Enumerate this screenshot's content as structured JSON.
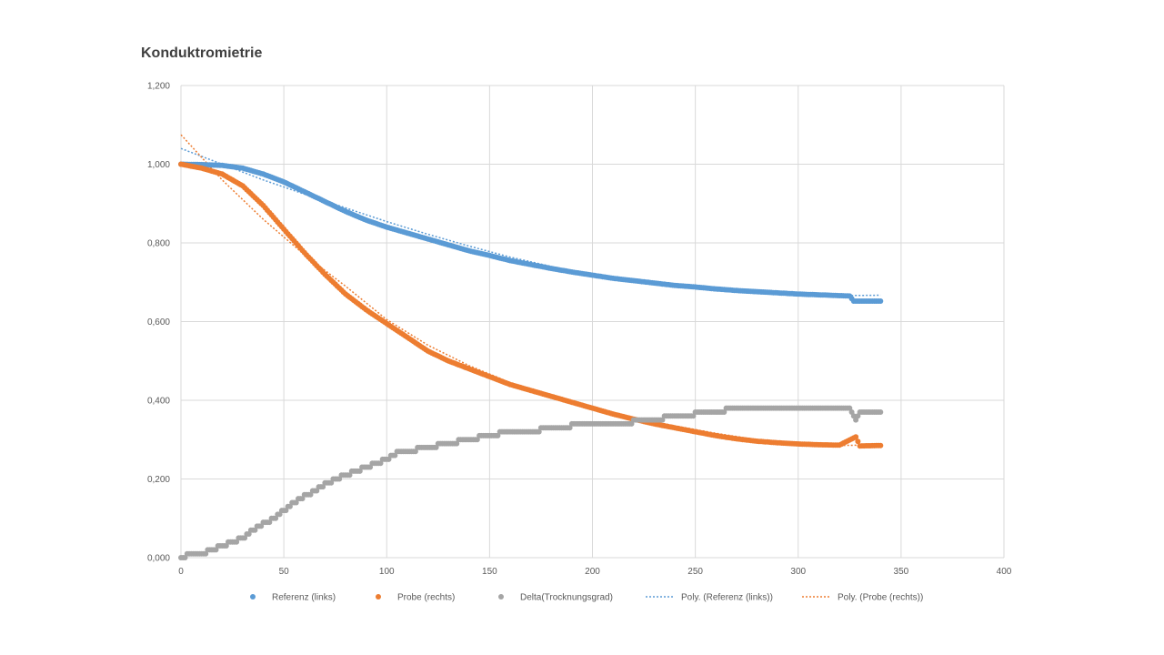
{
  "chart_data": {
    "type": "scatter",
    "title": "Konduktromietrie",
    "xlabel": "",
    "ylabel": "",
    "xlim": [
      0,
      400
    ],
    "ylim": [
      0,
      1.2
    ],
    "x_ticks": [
      0,
      50,
      100,
      150,
      200,
      250,
      300,
      350,
      400
    ],
    "y_ticks": [
      0,
      0.2,
      0.4,
      0.6,
      0.8,
      1.0,
      1.2
    ],
    "x_tick_labels": [
      "0",
      "50",
      "100",
      "150",
      "200",
      "250",
      "300",
      "350",
      "400"
    ],
    "y_tick_labels": [
      "0,000",
      "0,200",
      "0,400",
      "0,600",
      "0,800",
      "1,000",
      "1,200"
    ],
    "grid": true,
    "legend_position": "bottom",
    "series": [
      {
        "name": "Referenz (links)",
        "kind": "scatter",
        "color": "#5B9BD5",
        "points": [
          [
            0,
            1.0
          ],
          [
            10,
            0.999
          ],
          [
            20,
            0.997
          ],
          [
            30,
            0.99
          ],
          [
            40,
            0.975
          ],
          [
            50,
            0.955
          ],
          [
            60,
            0.93
          ],
          [
            70,
            0.905
          ],
          [
            80,
            0.88
          ],
          [
            90,
            0.858
          ],
          [
            100,
            0.84
          ],
          [
            110,
            0.825
          ],
          [
            120,
            0.81
          ],
          [
            130,
            0.795
          ],
          [
            140,
            0.78
          ],
          [
            150,
            0.768
          ],
          [
            160,
            0.755
          ],
          [
            170,
            0.745
          ],
          [
            180,
            0.735
          ],
          [
            190,
            0.726
          ],
          [
            200,
            0.718
          ],
          [
            210,
            0.71
          ],
          [
            220,
            0.704
          ],
          [
            230,
            0.698
          ],
          [
            240,
            0.692
          ],
          [
            250,
            0.688
          ],
          [
            260,
            0.683
          ],
          [
            270,
            0.679
          ],
          [
            280,
            0.676
          ],
          [
            290,
            0.673
          ],
          [
            300,
            0.67
          ],
          [
            310,
            0.668
          ],
          [
            320,
            0.666
          ],
          [
            325,
            0.665
          ],
          [
            327,
            0.652
          ],
          [
            330,
            0.652
          ],
          [
            335,
            0.652
          ],
          [
            340,
            0.652
          ]
        ]
      },
      {
        "name": "Probe (rechts)",
        "kind": "scatter",
        "color": "#ED7D31",
        "points": [
          [
            0,
            1.0
          ],
          [
            10,
            0.99
          ],
          [
            20,
            0.975
          ],
          [
            30,
            0.945
          ],
          [
            40,
            0.895
          ],
          [
            50,
            0.835
          ],
          [
            60,
            0.775
          ],
          [
            70,
            0.72
          ],
          [
            80,
            0.67
          ],
          [
            90,
            0.63
          ],
          [
            100,
            0.595
          ],
          [
            110,
            0.56
          ],
          [
            120,
            0.525
          ],
          [
            130,
            0.5
          ],
          [
            140,
            0.48
          ],
          [
            150,
            0.46
          ],
          [
            160,
            0.44
          ],
          [
            170,
            0.425
          ],
          [
            180,
            0.41
          ],
          [
            190,
            0.395
          ],
          [
            200,
            0.38
          ],
          [
            210,
            0.365
          ],
          [
            220,
            0.352
          ],
          [
            230,
            0.34
          ],
          [
            240,
            0.33
          ],
          [
            250,
            0.32
          ],
          [
            260,
            0.31
          ],
          [
            270,
            0.302
          ],
          [
            280,
            0.296
          ],
          [
            290,
            0.292
          ],
          [
            300,
            0.289
          ],
          [
            310,
            0.287
          ],
          [
            320,
            0.286
          ],
          [
            328,
            0.307
          ],
          [
            330,
            0.284
          ],
          [
            340,
            0.285
          ]
        ]
      },
      {
        "name": "Delta(Trocknungsgrad)",
        "kind": "scatter",
        "color": "#A5A5A5",
        "points": [
          [
            0,
            0.0
          ],
          [
            5,
            0.01
          ],
          [
            10,
            0.01
          ],
          [
            15,
            0.02
          ],
          [
            20,
            0.03
          ],
          [
            25,
            0.04
          ],
          [
            30,
            0.05
          ],
          [
            35,
            0.07
          ],
          [
            40,
            0.085
          ],
          [
            45,
            0.1
          ],
          [
            50,
            0.12
          ],
          [
            55,
            0.14
          ],
          [
            60,
            0.155
          ],
          [
            65,
            0.17
          ],
          [
            70,
            0.185
          ],
          [
            75,
            0.2
          ],
          [
            80,
            0.21
          ],
          [
            85,
            0.22
          ],
          [
            90,
            0.23
          ],
          [
            95,
            0.24
          ],
          [
            100,
            0.25
          ],
          [
            105,
            0.265
          ],
          [
            110,
            0.27
          ],
          [
            120,
            0.28
          ],
          [
            130,
            0.29
          ],
          [
            140,
            0.3
          ],
          [
            150,
            0.31
          ],
          [
            160,
            0.32
          ],
          [
            170,
            0.32
          ],
          [
            180,
            0.33
          ],
          [
            190,
            0.335
          ],
          [
            200,
            0.34
          ],
          [
            210,
            0.34
          ],
          [
            220,
            0.345
          ],
          [
            230,
            0.35
          ],
          [
            240,
            0.36
          ],
          [
            250,
            0.365
          ],
          [
            260,
            0.37
          ],
          [
            270,
            0.38
          ],
          [
            280,
            0.38
          ],
          [
            290,
            0.38
          ],
          [
            300,
            0.38
          ],
          [
            310,
            0.38
          ],
          [
            320,
            0.38
          ],
          [
            325,
            0.38
          ],
          [
            328,
            0.35
          ],
          [
            330,
            0.37
          ],
          [
            340,
            0.37
          ]
        ]
      },
      {
        "name": "Poly. (Referenz (links))",
        "kind": "trendline",
        "color": "#5B9BD5",
        "points": [
          [
            0,
            1.04
          ],
          [
            20,
            1.0
          ],
          [
            40,
            0.96
          ],
          [
            60,
            0.924
          ],
          [
            80,
            0.889
          ],
          [
            100,
            0.854
          ],
          [
            120,
            0.822
          ],
          [
            140,
            0.792
          ],
          [
            160,
            0.764
          ],
          [
            180,
            0.74
          ],
          [
            200,
            0.72
          ],
          [
            220,
            0.702
          ],
          [
            240,
            0.688
          ],
          [
            260,
            0.678
          ],
          [
            280,
            0.671
          ],
          [
            300,
            0.667
          ],
          [
            320,
            0.666
          ],
          [
            340,
            0.667
          ]
        ]
      },
      {
        "name": "Poly. (Probe (rechts))",
        "kind": "trendline",
        "color": "#ED7D31",
        "points": [
          [
            0,
            1.075
          ],
          [
            20,
            0.96
          ],
          [
            40,
            0.86
          ],
          [
            60,
            0.77
          ],
          [
            80,
            0.69
          ],
          [
            100,
            0.605
          ],
          [
            120,
            0.54
          ],
          [
            140,
            0.488
          ],
          [
            160,
            0.445
          ],
          [
            180,
            0.41
          ],
          [
            200,
            0.382
          ],
          [
            220,
            0.357
          ],
          [
            240,
            0.335
          ],
          [
            260,
            0.316
          ],
          [
            280,
            0.3
          ],
          [
            300,
            0.29
          ],
          [
            320,
            0.285
          ],
          [
            340,
            0.287
          ]
        ]
      }
    ]
  }
}
